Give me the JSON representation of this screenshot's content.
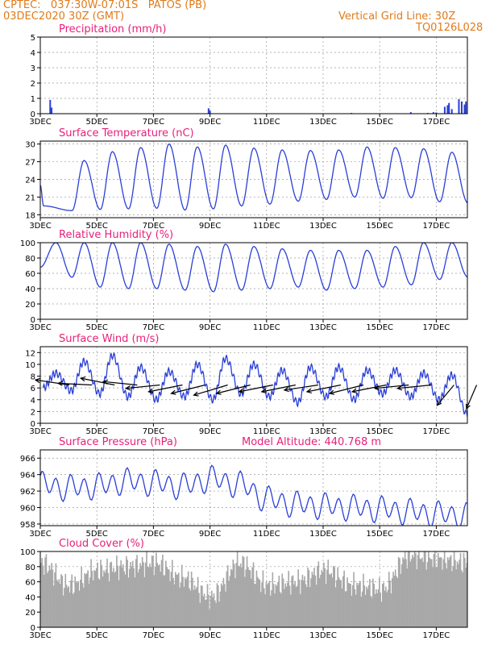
{
  "header": {
    "line1": "CPTEC:   037:30W-07:01S   PATOS (PB)",
    "line2": "03DEC2020 30Z (GMT)",
    "right1": "Vertical Grid Line: 30Z",
    "right2": "TQ0126L028"
  },
  "x_tick_labels": [
    "3DEC",
    "5DEC",
    "7DEC",
    "9DEC",
    "11DEC",
    "13DEC",
    "15DEC",
    "17DEC"
  ],
  "x_tick_days": [
    0,
    2,
    4,
    6,
    8,
    10,
    12,
    14
  ],
  "x_range_days": [
    0,
    15.1
  ],
  "colors": {
    "line": "#2a3fd6",
    "title": "#e8207a",
    "header": "#e07b1a",
    "bars": "#a8a8a8",
    "grid": "#9a9a9a"
  },
  "chart_data": [
    {
      "type": "bar",
      "title": "Precipitation (mm/h)",
      "ylim": [
        0,
        5
      ],
      "yticks": [
        0,
        1,
        2,
        3,
        4,
        5
      ],
      "x_days": [
        0.35,
        0.4,
        5.95,
        6.0,
        11.0,
        13.1,
        13.7,
        13.9,
        14.0,
        14.3,
        14.4,
        14.45,
        14.55,
        14.8,
        14.9,
        15.0,
        15.05
      ],
      "values": [
        0.9,
        0.4,
        0.35,
        0.2,
        0.05,
        0.1,
        0.05,
        0.1,
        0.08,
        0.45,
        0.55,
        0.7,
        0.3,
        0.95,
        0.8,
        0.6,
        0.8
      ]
    },
    {
      "type": "line",
      "title": "Surface Temperature (nC)",
      "ylim": [
        17.5,
        30.5
      ],
      "yticks": [
        18,
        21,
        24,
        27,
        30
      ],
      "xlabel": "",
      "ylabel": "",
      "diurnal": {
        "min": [
          19.5,
          18.7,
          18.9,
          19.0,
          19.1,
          18.8,
          19.0,
          19.5,
          19.8,
          20.3,
          20.6,
          21.0,
          20.8,
          20.9,
          20.2,
          20.0
        ],
        "max": [
          null,
          27.2,
          28.7,
          29.4,
          30.0,
          29.5,
          29.8,
          29.3,
          29.0,
          28.9,
          29.0,
          29.5,
          29.4,
          29.2,
          28.6,
          27.3
        ]
      }
    },
    {
      "type": "line",
      "title": "Relative Humidity (%)",
      "ylim": [
        0,
        100
      ],
      "yticks": [
        0,
        20,
        40,
        60,
        80,
        100
      ],
      "diurnal": {
        "min": [
          null,
          55,
          42,
          40,
          40,
          38,
          36,
          38,
          40,
          42,
          38,
          40,
          42,
          45,
          52,
          55
        ],
        "max": [
          100,
          100,
          100,
          100,
          98,
          95,
          98,
          95,
          92,
          90,
          90,
          90,
          95,
          100,
          100,
          100
        ]
      }
    },
    {
      "type": "line",
      "title": "Surface Wind (m/s)",
      "ylim": [
        0,
        13
      ],
      "yticks": [
        0,
        2,
        4,
        6,
        8,
        10,
        12
      ],
      "speed_peaks": [
        8.5,
        10.5,
        11.5,
        9.5,
        8.8,
        10.0,
        11.0,
        10.0,
        9.0,
        9.5,
        9.5,
        9.0,
        9.0,
        8.5,
        8.2,
        7.5
      ],
      "speed_troughs": [
        6.0,
        5.5,
        5.0,
        4.5,
        4.0,
        4.5,
        4.0,
        5.0,
        4.5,
        3.5,
        4.5,
        4.0,
        5.0,
        4.5,
        4.0,
        1.5
      ],
      "vectors": {
        "x_days": [
          0.4,
          1.2,
          2.0,
          2.8,
          3.6,
          4.4,
          5.2,
          6.0,
          6.8,
          7.6,
          8.4,
          9.2,
          10.0,
          10.8,
          11.6,
          12.4,
          13.2,
          14.0,
          14.8
        ],
        "u": [
          -1,
          -1,
          -1,
          -1,
          -1,
          -1,
          -1,
          -1,
          -1,
          -1,
          -1,
          -1,
          -1,
          -1,
          -1,
          -1,
          -1,
          -0.5,
          -0.3
        ],
        "v": [
          0.15,
          0.05,
          0.2,
          0.1,
          -0.1,
          -0.2,
          -0.25,
          -0.3,
          -0.25,
          -0.2,
          -0.2,
          -0.15,
          -0.2,
          -0.25,
          -0.2,
          -0.1,
          -0.1,
          -0.6,
          -0.7
        ]
      }
    },
    {
      "type": "line",
      "title": "Surface Pressure (hPa)",
      "annotation": "Model Altitude: 440.768 m",
      "ylim": [
        957.8,
        967
      ],
      "yticks": [
        958,
        960,
        962,
        964,
        966
      ],
      "trend": [
        962.8,
        962.4,
        962.6,
        963.2,
        963.0,
        962.6,
        963.5,
        962.8,
        961.0,
        960.4,
        960.2,
        960.0,
        959.8,
        959.5,
        959.2,
        959.0
      ]
    },
    {
      "type": "area",
      "title": "Cloud Cover (%)",
      "ylim": [
        0,
        100
      ],
      "yticks": [
        0,
        20,
        40,
        60,
        80,
        100
      ],
      "daily_mean": [
        85,
        55,
        75,
        80,
        85,
        65,
        40,
        85,
        55,
        60,
        75,
        55,
        50,
        95,
        90,
        85
      ]
    }
  ]
}
